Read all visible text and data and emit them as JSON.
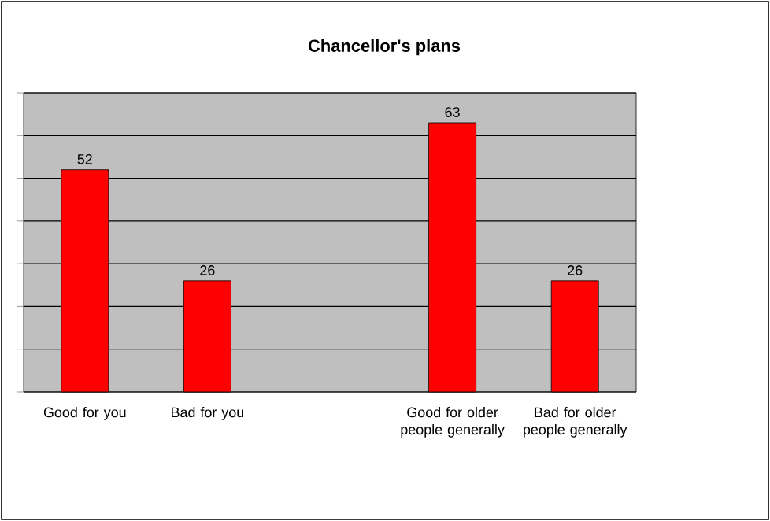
{
  "chart_data": {
    "type": "bar",
    "title": "Chancellor's plans",
    "categories": [
      "Good for you",
      "Bad for you",
      null,
      "Good for older people generally",
      "Bad for older people generally"
    ],
    "values": [
      52,
      26,
      null,
      63,
      26
    ],
    "color": "#ff0000",
    "ylim": [
      0,
      70
    ],
    "yticks": [
      {
        "value": 0,
        "label": null
      },
      {
        "value": 10,
        "label": null
      },
      {
        "value": 20,
        "label": null
      },
      {
        "value": 30,
        "label": null
      },
      {
        "value": 40,
        "label": null
      },
      {
        "value": 50,
        "label": null
      },
      {
        "value": 60,
        "label": null
      },
      {
        "value": 70,
        "label": null
      }
    ],
    "grid": "y",
    "tick_labels": "x",
    "data_labels": true
  }
}
